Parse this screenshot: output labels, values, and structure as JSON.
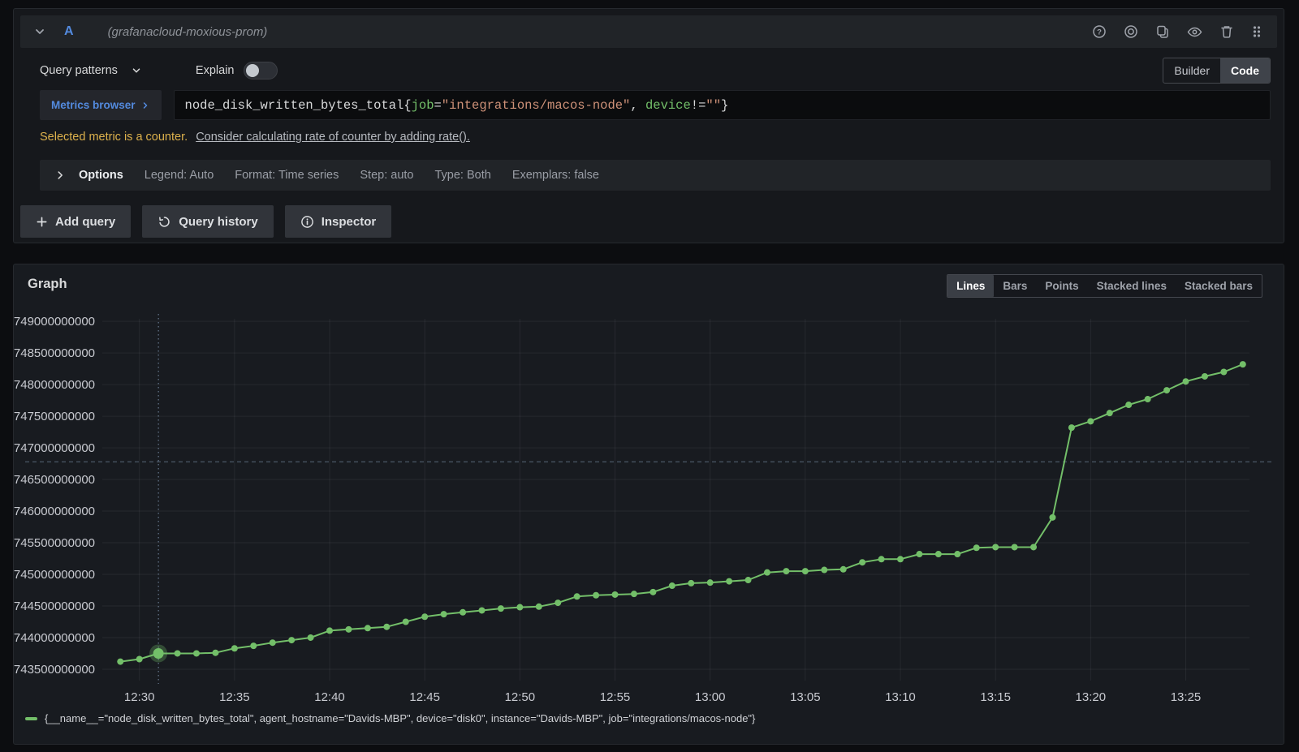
{
  "colors": {
    "accent_blue": "#538ade",
    "series_green": "#73bf69",
    "warning_yellow": "#ddb14c",
    "string_salmon": "#ce9178",
    "plain_code": "#d8d9da"
  },
  "query_editor": {
    "ref_id": "A",
    "datasource_name": "(grafanacloud-moxious-prom)",
    "toolbar": {
      "query_patterns_label": "Query patterns",
      "explain_label": "Explain",
      "builder_label": "Builder",
      "code_label": "Code"
    },
    "metrics_browser_label": "Metrics browser",
    "query_tokens": [
      {
        "text": "node_disk_written_bytes_total{",
        "color": "#d8d9da"
      },
      {
        "text": "job",
        "color": "#73bf69"
      },
      {
        "text": "=",
        "color": "#d8d9da"
      },
      {
        "text": "\"integrations/macos-node\"",
        "color": "#ce9178"
      },
      {
        "text": ", ",
        "color": "#d8d9da"
      },
      {
        "text": "device",
        "color": "#73bf69"
      },
      {
        "text": "!=",
        "color": "#d8d9da"
      },
      {
        "text": "\"\"",
        "color": "#ce9178"
      },
      {
        "text": "}",
        "color": "#d8d9da"
      }
    ],
    "warning_text": "Selected metric is a counter.",
    "warning_link": "Consider calculating rate of counter by adding rate().",
    "options": {
      "label": "Options",
      "summary": [
        "Legend: Auto",
        "Format: Time series",
        "Step: auto",
        "Type: Both",
        "Exemplars: false"
      ]
    },
    "actions": {
      "add_query": "Add query",
      "query_history": "Query history",
      "inspector": "Inspector"
    }
  },
  "graph_panel": {
    "title": "Graph",
    "view_modes": [
      "Lines",
      "Bars",
      "Points",
      "Stacked lines",
      "Stacked bars"
    ],
    "active_view_mode": "Lines",
    "legend_label": "{__name__=\"node_disk_written_bytes_total\", agent_hostname=\"Davids-MBP\", device=\"disk0\", instance=\"Davids-MBP\", job=\"integrations/macos-node\"}"
  },
  "chart_data": {
    "type": "line",
    "title": "Graph",
    "grid": true,
    "legend_position": "bottom",
    "x_ticks": [
      {
        "label": "12:30",
        "minute": 0
      },
      {
        "label": "12:35",
        "minute": 5
      },
      {
        "label": "12:40",
        "minute": 10
      },
      {
        "label": "12:45",
        "minute": 15
      },
      {
        "label": "12:50",
        "minute": 20
      },
      {
        "label": "12:55",
        "minute": 25
      },
      {
        "label": "13:00",
        "minute": 30
      },
      {
        "label": "13:05",
        "minute": 35
      },
      {
        "label": "13:10",
        "minute": 40
      },
      {
        "label": "13:15",
        "minute": 45
      },
      {
        "label": "13:20",
        "minute": 50
      },
      {
        "label": "13:25",
        "minute": 55
      }
    ],
    "y_ticks": [
      743500000000,
      744000000000,
      744500000000,
      745000000000,
      745500000000,
      746000000000,
      746500000000,
      747000000000,
      747500000000,
      748000000000,
      748500000000,
      749000000000
    ],
    "ylim": [
      743320000000,
      749040000000
    ],
    "xlim_minutes": [
      -1.95,
      58.35
    ],
    "highlight_point_index": 2,
    "crosshair": {
      "x_minute": 1,
      "y_value": 746780000000
    },
    "series": [
      {
        "name": "{__name__=\"node_disk_written_bytes_total\", agent_hostname=\"Davids-MBP\", device=\"disk0\", instance=\"Davids-MBP\", job=\"integrations/macos-node\"}",
        "color": "#73bf69",
        "x_minutes_after_12_30": [
          -1,
          0,
          1,
          2,
          3,
          4,
          5,
          6,
          7,
          8,
          9,
          10,
          11,
          12,
          13,
          14,
          15,
          16,
          17,
          18,
          19,
          20,
          21,
          22,
          23,
          24,
          25,
          26,
          27,
          28,
          29,
          30,
          31,
          32,
          33,
          34,
          35,
          36,
          37,
          38,
          39,
          40,
          41,
          42,
          43,
          44,
          45,
          46,
          47,
          48,
          49,
          50,
          51,
          52,
          53,
          54,
          55,
          56,
          57,
          58
        ],
        "values_bytes": [
          743620000000,
          743660000000,
          743750000000,
          743750000000,
          743750000000,
          743760000000,
          743830000000,
          743870000000,
          743920000000,
          743960000000,
          744000000000,
          744110000000,
          744130000000,
          744150000000,
          744170000000,
          744250000000,
          744330000000,
          744370000000,
          744400000000,
          744430000000,
          744460000000,
          744480000000,
          744490000000,
          744550000000,
          744650000000,
          744670000000,
          744680000000,
          744690000000,
          744720000000,
          744820000000,
          744860000000,
          744870000000,
          744890000000,
          744910000000,
          745030000000,
          745050000000,
          745050000000,
          745070000000,
          745080000000,
          745190000000,
          745240000000,
          745240000000,
          745320000000,
          745320000000,
          745320000000,
          745420000000,
          745430000000,
          745430000000,
          745430000000,
          745900000000,
          747320000000,
          747420000000,
          747550000000,
          747680000000,
          747770000000,
          747910000000,
          748050000000,
          748130000000,
          748200000000,
          748320000000
        ]
      }
    ]
  }
}
